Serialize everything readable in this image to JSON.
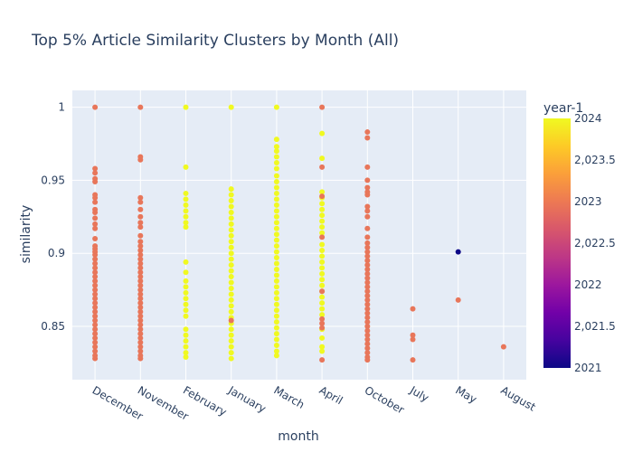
{
  "chart_data": {
    "type": "scatter",
    "title": "Top 5% Article Similarity Clusters by Month (All)",
    "xlabel": "month",
    "ylabel": "similarity",
    "categories": [
      "December",
      "November",
      "February",
      "January",
      "March",
      "April",
      "October",
      "July",
      "May",
      "August"
    ],
    "ylim": [
      0.8135,
      1.0115
    ],
    "yticks": [
      0.85,
      0.9,
      0.95,
      1
    ],
    "ytick_labels": [
      "0.85",
      "0.9",
      "0.95",
      "1"
    ],
    "grid": true,
    "colorbar": {
      "title": "year-1",
      "range": [
        2021,
        2024
      ],
      "ticks": [
        2021,
        2021.5,
        2022,
        2022.5,
        2023,
        2023.5,
        2024
      ],
      "tick_labels": [
        "2021",
        "2,021.5",
        "2022",
        "2,022.5",
        "2023",
        "2,023.5",
        "2024"
      ]
    },
    "colors": {
      "y2023": "#e8765a",
      "y2024": "#f0f921",
      "y2021": "#0d0887",
      "plot_bg": "#e5ecf6",
      "grid": "#ffffff",
      "text": "#2a3f5f"
    },
    "series": [
      {
        "category": "December",
        "year": 2023,
        "values": [
          1.0,
          0.958,
          0.955,
          0.951,
          0.949,
          0.94,
          0.938,
          0.935,
          0.93,
          0.928,
          0.924,
          0.92,
          0.917,
          0.91,
          0.905,
          0.903,
          0.901,
          0.899,
          0.896,
          0.893,
          0.89,
          0.887,
          0.884,
          0.881,
          0.878,
          0.875,
          0.872,
          0.869,
          0.866,
          0.863,
          0.86,
          0.857,
          0.854,
          0.851,
          0.848,
          0.845,
          0.842,
          0.839,
          0.836,
          0.833,
          0.83,
          0.828
        ]
      },
      {
        "category": "November",
        "year": 2023,
        "values": [
          1.0,
          0.966,
          0.964,
          0.938,
          0.935,
          0.93,
          0.925,
          0.921,
          0.918,
          0.912,
          0.908,
          0.905,
          0.902,
          0.899,
          0.896,
          0.893,
          0.89,
          0.887,
          0.884,
          0.881,
          0.878,
          0.875,
          0.872,
          0.869,
          0.866,
          0.863,
          0.86,
          0.857,
          0.854,
          0.851,
          0.848,
          0.845,
          0.842,
          0.839,
          0.836,
          0.833,
          0.83,
          0.828
        ]
      },
      {
        "category": "February",
        "year": 2024,
        "values": [
          1.0,
          0.959,
          0.941,
          0.937,
          0.933,
          0.929,
          0.925,
          0.921,
          0.918,
          0.894,
          0.887,
          0.881,
          0.877,
          0.873,
          0.869,
          0.865,
          0.861,
          0.857,
          0.848,
          0.844,
          0.84,
          0.836,
          0.832,
          0.829
        ]
      },
      {
        "category": "January",
        "year": 2024,
        "values": [
          1.0,
          0.944,
          0.94,
          0.936,
          0.932,
          0.928,
          0.924,
          0.92,
          0.916,
          0.912,
          0.908,
          0.904,
          0.9,
          0.896,
          0.892,
          0.888,
          0.884,
          0.88,
          0.876,
          0.872,
          0.868,
          0.864,
          0.86,
          0.856,
          0.852,
          0.848,
          0.844,
          0.84,
          0.836,
          0.832,
          0.828
        ]
      },
      {
        "category": "January",
        "year": 2023,
        "values": [
          0.854
        ]
      },
      {
        "category": "March",
        "year": 2024,
        "values": [
          1.0,
          0.978,
          0.973,
          0.97,
          0.966,
          0.962,
          0.958,
          0.953,
          0.949,
          0.945,
          0.941,
          0.937,
          0.933,
          0.929,
          0.925,
          0.921,
          0.917,
          0.913,
          0.909,
          0.905,
          0.901,
          0.897,
          0.893,
          0.889,
          0.885,
          0.881,
          0.877,
          0.873,
          0.869,
          0.865,
          0.861,
          0.857,
          0.853,
          0.849,
          0.845,
          0.841,
          0.837,
          0.833,
          0.83
        ]
      },
      {
        "category": "April",
        "year": 2024,
        "values": [
          0.982,
          0.965,
          0.942,
          0.938,
          0.934,
          0.93,
          0.926,
          0.922,
          0.918,
          0.914,
          0.906,
          0.902,
          0.898,
          0.894,
          0.89,
          0.886,
          0.882,
          0.878,
          0.874,
          0.87,
          0.866,
          0.862,
          0.858,
          0.848,
          0.842,
          0.836,
          0.833
        ]
      },
      {
        "category": "April",
        "year": 2023,
        "values": [
          1.0,
          0.959,
          0.939,
          0.911,
          0.874,
          0.855,
          0.852,
          0.849,
          0.827
        ]
      },
      {
        "category": "October",
        "year": 2023,
        "values": [
          0.983,
          0.979,
          0.959,
          0.95,
          0.945,
          0.942,
          0.94,
          0.932,
          0.929,
          0.925,
          0.917,
          0.911,
          0.907,
          0.904,
          0.901,
          0.898,
          0.895,
          0.892,
          0.889,
          0.886,
          0.883,
          0.88,
          0.877,
          0.874,
          0.871,
          0.868,
          0.865,
          0.862,
          0.859,
          0.856,
          0.853,
          0.85,
          0.847,
          0.844,
          0.841,
          0.838,
          0.835,
          0.832,
          0.829,
          0.827
        ]
      },
      {
        "category": "July",
        "year": 2023,
        "values": [
          0.862,
          0.844,
          0.841,
          0.827
        ]
      },
      {
        "category": "May",
        "year": 2021,
        "values": [
          0.901
        ]
      },
      {
        "category": "May",
        "year": 2023,
        "values": [
          0.868
        ]
      },
      {
        "category": "August",
        "year": 2023,
        "values": [
          0.836
        ]
      }
    ]
  }
}
